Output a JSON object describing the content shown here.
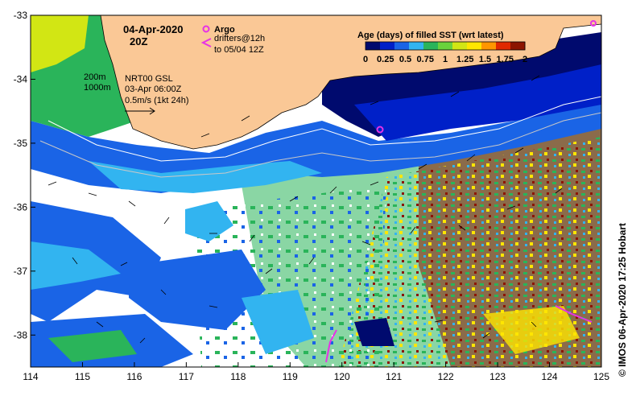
{
  "map": {
    "date_line1": "04-Apr-2020",
    "date_line2": "20Z",
    "argo_label": "Argo",
    "drifters_line1": "drifters@12h",
    "drifters_line2": "to 05/04 12Z",
    "depth_200": "200m",
    "depth_1000": "1000m",
    "current_line1": "NRT00 GSL",
    "current_line2": "03-Apr 06:00Z",
    "current_line3": "0.5m/s (1kt 24h)",
    "credit": "© IMOS 06-Apr-2020 17:25 Hobart"
  },
  "axes": {
    "lon_ticks": [
      "114",
      "115",
      "116",
      "117",
      "118",
      "119",
      "120",
      "121",
      "122",
      "123",
      "124",
      "125"
    ],
    "lat_ticks": [
      "-33",
      "-34",
      "-35",
      "-36",
      "-37",
      "-38"
    ],
    "lon_range": [
      114,
      125
    ],
    "lat_range": [
      -38.5,
      -33
    ]
  },
  "colorbar": {
    "title": "Age (days) of filled SST (wrt latest)",
    "tick_labels": [
      "0",
      "0.25",
      "0.5",
      "0.75",
      "1",
      "1.25",
      "1.5",
      "1.75",
      "2"
    ],
    "range": [
      0,
      2
    ],
    "colors": [
      "#000a6e",
      "#0020c8",
      "#1a64e6",
      "#32b4f0",
      "#2ab45a",
      "#6ad23c",
      "#d2e614",
      "#ffe600",
      "#ff9600",
      "#e02800",
      "#8c1400"
    ]
  },
  "colors": {
    "land": "#fac896",
    "no_data": "#ffffff",
    "argo_marker": "#e632e6",
    "drifter": "#e632e6"
  }
}
